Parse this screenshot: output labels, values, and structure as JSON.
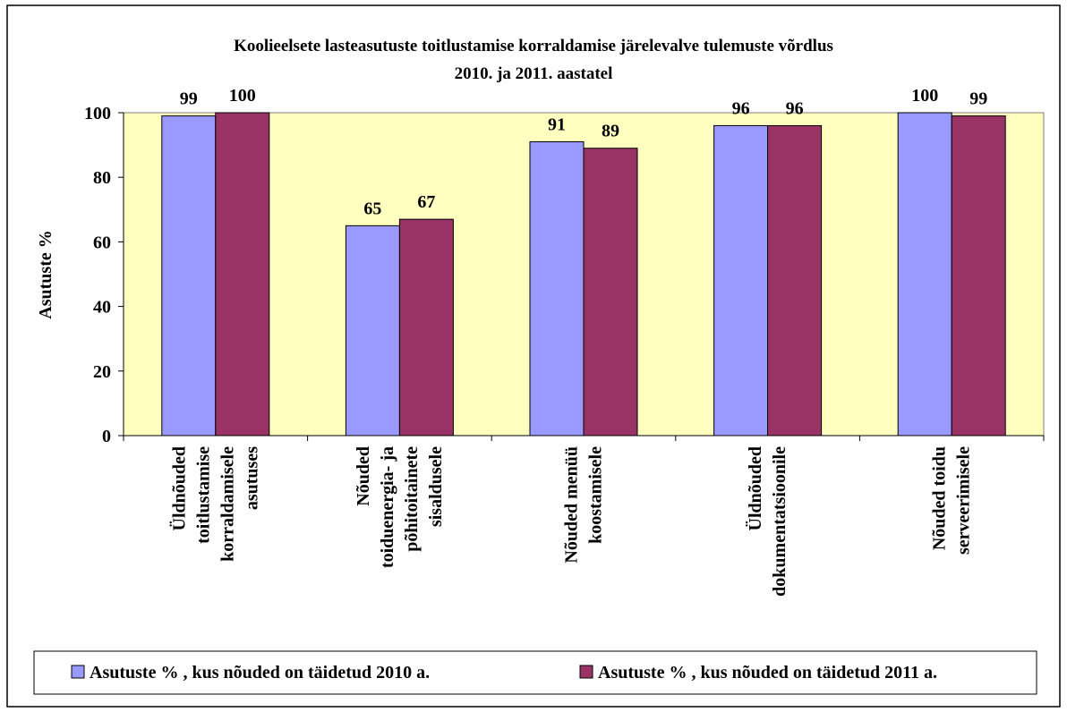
{
  "chart_data": {
    "type": "bar",
    "title": "Koolieelsete lasteasutuste toitlustamise korraldamise järelevalve tulemuste võrdlus\n2010. ja 2011. aastatel",
    "ylabel": "Asutuste %",
    "categories": [
      "Üldnõuded\ntoitlustamise\nkorraldamisele\nasutuses",
      "Nõuded\ntoiduenergia- ja\npõhitoitainete\nsisaldusele",
      "Nõuded menüü\nkoostamisele",
      "Üldnõuded\ndokumentatsioonile",
      "Nõuded toidu\nserveerimisele"
    ],
    "series": [
      {
        "name": "Asutuste % , kus nõuded on täidetud 2010 a.",
        "color": "#9999ff",
        "values": [
          99,
          65,
          91,
          96,
          100
        ]
      },
      {
        "name": "Asutuste % , kus nõuded on täidetud 2011 a.",
        "color": "#993366",
        "values": [
          100,
          67,
          89,
          96,
          99
        ]
      }
    ],
    "ylim": [
      0,
      100
    ],
    "yticks": [
      0,
      20,
      40,
      60,
      80,
      100
    ],
    "plot_background": "#ffffc0",
    "legend": "bottom"
  }
}
